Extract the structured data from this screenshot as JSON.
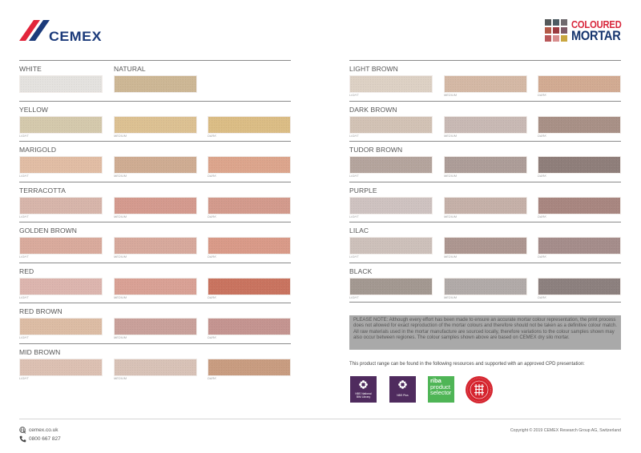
{
  "header": {
    "brand_logo": "CEMEX",
    "product_logo": {
      "line1": "COLOURED",
      "line2": "MORTAR",
      "grid_colors": [
        "#55595a",
        "#4d5c63",
        "#6f6a6e",
        "#b35a48",
        "#9b3b40",
        "#7d5a66",
        "#b9585a",
        "#d88e8e",
        "#c9a640"
      ],
      "line1_color": "#d8263b",
      "line2_color": "#16356e"
    }
  },
  "left_column": {
    "groups": [
      {
        "name": "WHITE",
        "second_name": "NATURAL",
        "swatches": [
          {
            "shade": "",
            "color": "#e4e2df"
          },
          {
            "shade": "",
            "color": "#cdb795"
          }
        ]
      },
      {
        "name": "YELLOW",
        "swatches": [
          {
            "shade": "LIGHT",
            "color": "#d4c9ac"
          },
          {
            "shade": "MEDIUM",
            "color": "#dcc192"
          },
          {
            "shade": "DARK",
            "color": "#dbbd85"
          }
        ]
      },
      {
        "name": "MARIGOLD",
        "swatches": [
          {
            "shade": "LIGHT",
            "color": "#e1bda4"
          },
          {
            "shade": "MEDIUM",
            "color": "#cfac92"
          },
          {
            "shade": "DARK",
            "color": "#dca58c"
          }
        ]
      },
      {
        "name": "TERRACOTTA",
        "swatches": [
          {
            "shade": "LIGHT",
            "color": "#d7b5aa"
          },
          {
            "shade": "MEDIUM",
            "color": "#d49a8e"
          },
          {
            "shade": "DARK",
            "color": "#d39a8c"
          }
        ]
      },
      {
        "name": "GOLDEN BROWN",
        "swatches": [
          {
            "shade": "LIGHT",
            "color": "#d9aa9c"
          },
          {
            "shade": "MEDIUM",
            "color": "#d7a99c"
          },
          {
            "shade": "DARK",
            "color": "#d99a88"
          }
        ]
      },
      {
        "name": "RED",
        "swatches": [
          {
            "shade": "LIGHT",
            "color": "#dcb5ae"
          },
          {
            "shade": "MEDIUM",
            "color": "#d9a195"
          },
          {
            "shade": "DARK",
            "color": "#c9735f"
          }
        ]
      },
      {
        "name": "RED BROWN",
        "swatches": [
          {
            "shade": "LIGHT",
            "color": "#dcbca4"
          },
          {
            "shade": "MEDIUM",
            "color": "#c9a09a"
          },
          {
            "shade": "DARK",
            "color": "#c49490"
          }
        ]
      },
      {
        "name": "MID BROWN",
        "swatches": [
          {
            "shade": "LIGHT",
            "color": "#dcc0b2"
          },
          {
            "shade": "MEDIUM",
            "color": "#d8c2b7"
          },
          {
            "shade": "DARK",
            "color": "#c89c80"
          }
        ]
      }
    ]
  },
  "right_column": {
    "groups": [
      {
        "name": "LIGHT BROWN",
        "swatches": [
          {
            "shade": "LIGHT",
            "color": "#ddd1c4"
          },
          {
            "shade": "MEDIUM",
            "color": "#d4b8a5"
          },
          {
            "shade": "DARK",
            "color": "#d2ab92"
          }
        ]
      },
      {
        "name": "DARK BROWN",
        "swatches": [
          {
            "shade": "LIGHT",
            "color": "#d2c2b5"
          },
          {
            "shade": "MEDIUM",
            "color": "#c8b9b4"
          },
          {
            "shade": "DARK",
            "color": "#a89086"
          }
        ]
      },
      {
        "name": "TUDOR BROWN",
        "swatches": [
          {
            "shade": "LIGHT",
            "color": "#b4a49d"
          },
          {
            "shade": "MEDIUM",
            "color": "#ad9d98"
          },
          {
            "shade": "DARK",
            "color": "#8f7e7a"
          }
        ]
      },
      {
        "name": "PURPLE",
        "swatches": [
          {
            "shade": "LIGHT",
            "color": "#cec2c0"
          },
          {
            "shade": "MEDIUM",
            "color": "#c5b0a8"
          },
          {
            "shade": "DARK",
            "color": "#a88680"
          }
        ]
      },
      {
        "name": "LILAC",
        "swatches": [
          {
            "shade": "LIGHT",
            "color": "#cdc0ba"
          },
          {
            "shade": "MEDIUM",
            "color": "#ad9690"
          },
          {
            "shade": "DARK",
            "color": "#a58d8b"
          }
        ]
      },
      {
        "name": "BLACK",
        "swatches": [
          {
            "shade": "LIGHT",
            "color": "#a39891"
          },
          {
            "shade": "MEDIUM",
            "color": "#b1aaa8"
          },
          {
            "shade": "DARK",
            "color": "#8c807e"
          }
        ]
      }
    ]
  },
  "note": {
    "text": "PLEASE NOTE: Although every effort has been made to ensure an accurate mortar colour representation, the print process does not allowed for exact reproduction of the mortar colours and therefore should not be taken as a definitive colour match. All raw materials used in the mortar manufacture are sourced locally, therefore variations to the colour samples shown may also occur between regiones. The colour samples shown above are based on CEMEX dry silo mortar."
  },
  "cpd": {
    "text": "This product range can be found in the following resources and supported with an approved CPD presentation:",
    "badges": [
      {
        "label": "NBS National BIM Library",
        "line1": "NBS National",
        "line2": "BIM Library",
        "color": "#4f2b5e"
      },
      {
        "label": "NBS Plus",
        "color": "#4f2b5e"
      },
      {
        "line1": "riba",
        "line2": "product",
        "line3": "selector",
        "color": "#4fb556"
      },
      {
        "label": "RIBA CPD Providers Network",
        "color": "#d5242e"
      }
    ]
  },
  "footer": {
    "website": "cemex.co.uk",
    "phone": "0800 667 827",
    "copyright": "Copyright © 2019 CEMEX Research Group AG, Switzerland"
  }
}
